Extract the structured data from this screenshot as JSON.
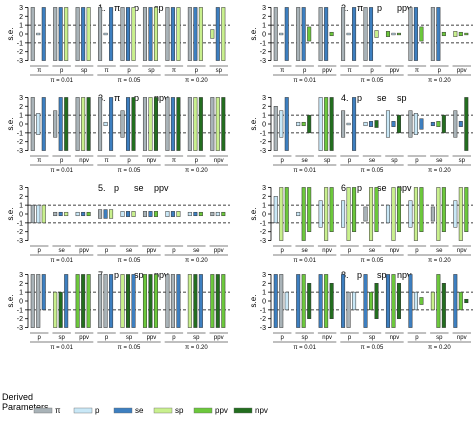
{
  "chart_data": [
    {
      "type": "bar",
      "panel_label": "1.",
      "title_terms": [
        "π",
        "p",
        "sp"
      ],
      "ylabel": "s.e.",
      "yticks": [
        3,
        2,
        1,
        0,
        -1,
        -2,
        -3
      ],
      "ylim": [
        -3.5,
        3.5
      ],
      "dashed_lines": [
        1,
        -1
      ],
      "group_labels": [
        "π = 0.01",
        "π = 0.05",
        "π = 0.20"
      ],
      "groups": [
        {
          "label": "π = 0.01",
          "clusters": [
            {
              "label": "π",
              "bars": []
            },
            {
              "label": "p",
              "bars": []
            },
            {
              "label": "sp",
              "bars": []
            }
          ]
        },
        {
          "label": "π = 0.05",
          "clusters": [
            {
              "label": "π",
              "bars": []
            },
            {
              "label": "p",
              "bars": []
            },
            {
              "label": "sp",
              "bars": []
            }
          ]
        },
        {
          "label": "π = 0.20",
          "clusters": [
            {
              "label": "π",
              "bars": []
            },
            {
              "label": "p",
              "bars": []
            },
            {
              "label": "sp",
              "bars": []
            }
          ]
        }
      ]
    },
    {
      "type": "bar",
      "panel_label": "2.",
      "title_terms": [
        "π",
        "p",
        "ppv"
      ],
      "ylabel": "s.e.",
      "yticks": [
        3,
        2,
        1,
        0,
        -1,
        -2,
        -3
      ],
      "ylim": [
        -3.5,
        3.5
      ],
      "dashed_lines": [
        1,
        -1
      ],
      "groups": [
        {
          "label": "π = 0.01",
          "clusters": [
            {
              "label": "π",
              "bars": []
            },
            {
              "label": "p",
              "bars": []
            },
            {
              "label": "ppv",
              "bars": []
            }
          ]
        },
        {
          "label": "π = 0.05",
          "clusters": [
            {
              "label": "π",
              "bars": []
            },
            {
              "label": "p",
              "bars": []
            },
            {
              "label": "ppv",
              "bars": []
            }
          ]
        },
        {
          "label": "π = 0.20",
          "clusters": [
            {
              "label": "π",
              "bars": []
            },
            {
              "label": "p",
              "bars": []
            },
            {
              "label": "ppv",
              "bars": []
            }
          ]
        }
      ]
    },
    {
      "type": "bar",
      "panel_label": "3.",
      "title_terms": [
        "π",
        "p",
        "npv"
      ],
      "ylabel": "s.e.",
      "yticks": [
        3,
        2,
        1,
        0,
        -1,
        -2,
        -3
      ],
      "ylim": [
        -3.5,
        3.5
      ],
      "dashed_lines": [
        1,
        -1
      ],
      "groups": [
        {
          "label": "π = 0.01",
          "clusters": [
            {
              "label": "π",
              "bars": []
            },
            {
              "label": "p",
              "bars": []
            },
            {
              "label": "npv",
              "bars": []
            }
          ]
        },
        {
          "label": "π = 0.05",
          "clusters": [
            {
              "label": "π",
              "bars": []
            },
            {
              "label": "p",
              "bars": []
            },
            {
              "label": "npv",
              "bars": []
            }
          ]
        },
        {
          "label": "π = 0.20",
          "clusters": [
            {
              "label": "π",
              "bars": []
            },
            {
              "label": "p",
              "bars": []
            },
            {
              "label": "npv",
              "bars": []
            }
          ]
        }
      ]
    },
    {
      "type": "bar",
      "panel_label": "4.",
      "title_terms": [
        "p",
        "se",
        "sp"
      ],
      "ylabel": "s.e.",
      "yticks": [
        3,
        2,
        1,
        0,
        -1,
        -2,
        -3
      ],
      "ylim": [
        -3.5,
        3.5
      ],
      "dashed_lines": [
        1,
        -1
      ],
      "groups": [
        {
          "label": "π = 0.01",
          "clusters": [
            {
              "label": "p",
              "bars": []
            },
            {
              "label": "se",
              "bars": []
            },
            {
              "label": "sp",
              "bars": []
            }
          ]
        },
        {
          "label": "π = 0.05",
          "clusters": [
            {
              "label": "p",
              "bars": []
            },
            {
              "label": "se",
              "bars": []
            },
            {
              "label": "sp",
              "bars": []
            }
          ]
        },
        {
          "label": "π = 0.20",
          "clusters": [
            {
              "label": "p",
              "bars": []
            },
            {
              "label": "se",
              "bars": []
            },
            {
              "label": "sp",
              "bars": []
            }
          ]
        }
      ]
    },
    {
      "type": "bar",
      "panel_label": "5.",
      "title_terms": [
        "p",
        "se",
        "ppv"
      ],
      "ylabel": "s.e.",
      "yticks": [
        3,
        2,
        1,
        0,
        -1,
        -2,
        -3
      ],
      "ylim": [
        -3.5,
        3.5
      ],
      "dashed_lines": [
        1,
        -1
      ],
      "groups": [
        {
          "label": "π = 0.01",
          "clusters": [
            {
              "label": "p",
              "bars": []
            },
            {
              "label": "se",
              "bars": []
            },
            {
              "label": "ppv",
              "bars": []
            }
          ]
        },
        {
          "label": "π = 0.05",
          "clusters": [
            {
              "label": "p",
              "bars": []
            },
            {
              "label": "se",
              "bars": []
            },
            {
              "label": "ppv",
              "bars": []
            }
          ]
        },
        {
          "label": "π = 0.20",
          "clusters": [
            {
              "label": "p",
              "bars": []
            },
            {
              "label": "se",
              "bars": []
            },
            {
              "label": "ppv",
              "bars": []
            }
          ]
        }
      ]
    },
    {
      "type": "bar",
      "panel_label": "6.",
      "title_terms": [
        "p",
        "se",
        "npv"
      ],
      "ylabel": "s.e.",
      "yticks": [
        3,
        2,
        1,
        0,
        -1,
        -2,
        -3
      ],
      "ylim": [
        -3.5,
        3.5
      ],
      "dashed_lines": [
        1,
        -1
      ],
      "groups": [
        {
          "label": "π = 0.01",
          "clusters": [
            {
              "label": "p",
              "bars": []
            },
            {
              "label": "se",
              "bars": []
            },
            {
              "label": "npv",
              "bars": []
            }
          ]
        },
        {
          "label": "π = 0.05",
          "clusters": [
            {
              "label": "p",
              "bars": []
            },
            {
              "label": "se",
              "bars": []
            },
            {
              "label": "npv",
              "bars": []
            }
          ]
        },
        {
          "label": "π = 0.20",
          "clusters": [
            {
              "label": "p",
              "bars": []
            },
            {
              "label": "se",
              "bars": []
            },
            {
              "label": "npv",
              "bars": []
            }
          ]
        }
      ]
    },
    {
      "type": "bar",
      "panel_label": "7.",
      "title_terms": [
        "p",
        "sp",
        "ppv"
      ],
      "ylabel": "s.e.",
      "yticks": [
        3,
        2,
        1,
        0,
        -1,
        -2,
        -3
      ],
      "ylim": [
        -3.5,
        3.5
      ],
      "dashed_lines": [
        1,
        -1
      ],
      "groups": [
        {
          "label": "π = 0.01",
          "clusters": [
            {
              "label": "p",
              "bars": []
            },
            {
              "label": "sp",
              "bars": []
            },
            {
              "label": "ppv",
              "bars": []
            }
          ]
        },
        {
          "label": "π = 0.05",
          "clusters": [
            {
              "label": "p",
              "bars": []
            },
            {
              "label": "sp",
              "bars": []
            },
            {
              "label": "ppv",
              "bars": []
            }
          ]
        },
        {
          "label": "π = 0.20",
          "clusters": [
            {
              "label": "p",
              "bars": []
            },
            {
              "label": "sp",
              "bars": []
            },
            {
              "label": "ppv",
              "bars": []
            }
          ]
        }
      ]
    },
    {
      "type": "bar",
      "panel_label": "8.",
      "title_terms": [
        "p",
        "sp",
        "npv"
      ],
      "ylabel": "s.e.",
      "yticks": [
        3,
        2,
        1,
        0,
        -1,
        -2,
        -3
      ],
      "ylim": [
        -3.5,
        3.5
      ],
      "dashed_lines": [
        1,
        -1
      ],
      "groups": [
        {
          "label": "π = 0.01",
          "clusters": [
            {
              "label": "p",
              "bars": []
            },
            {
              "label": "sp",
              "bars": []
            },
            {
              "label": "npv",
              "bars": []
            }
          ]
        },
        {
          "label": "π = 0.05",
          "clusters": [
            {
              "label": "p",
              "bars": []
            },
            {
              "label": "sp",
              "bars": []
            },
            {
              "label": "npv",
              "bars": []
            }
          ]
        },
        {
          "label": "π = 0.20",
          "clusters": [
            {
              "label": "p",
              "bars": []
            },
            {
              "label": "sp",
              "bars": []
            },
            {
              "label": "npv",
              "bars": []
            }
          ]
        }
      ]
    }
  ],
  "legend": {
    "title": "Derived\nParameters",
    "items": [
      {
        "label": "π",
        "color": "#a9b3b8"
      },
      {
        "label": "p",
        "color": "#c9e8f7"
      },
      {
        "label": "se",
        "color": "#3d7fc0"
      },
      {
        "label": "sp",
        "color": "#c9f08e"
      },
      {
        "label": "ppv",
        "color": "#6cc83c"
      },
      {
        "label": "npv",
        "color": "#236e1f"
      }
    ]
  }
}
